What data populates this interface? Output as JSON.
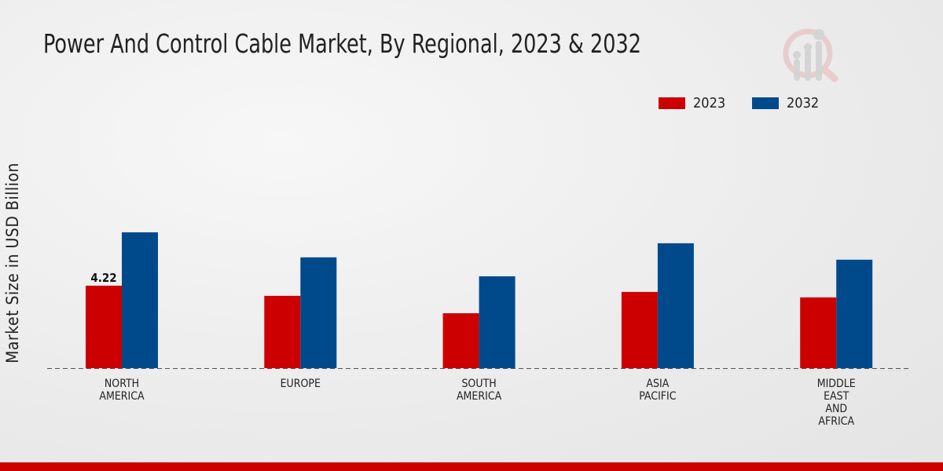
{
  "chart_data": {
    "type": "bar",
    "title": "Power And Control Cable Market, By Regional, 2023 & 2032",
    "xlabel": "",
    "ylabel": "Market Size in USD Billion",
    "categories": [
      [
        "NORTH",
        "AMERICA"
      ],
      [
        "EUROPE"
      ],
      [
        "SOUTH",
        "AMERICA"
      ],
      [
        "ASIA",
        "PACIFIC"
      ],
      [
        "MIDDLE",
        "EAST",
        "AND",
        "AFRICA"
      ]
    ],
    "series": [
      {
        "name": "2023",
        "color": "#cc0000",
        "values": [
          4.22,
          3.7,
          2.81,
          3.9,
          3.62
        ]
      },
      {
        "name": "2032",
        "color": "#004a8c",
        "values": [
          6.95,
          5.67,
          4.7,
          6.39,
          5.55
        ]
      }
    ],
    "data_labels": [
      {
        "series": 0,
        "index": 0,
        "text": "4.22"
      }
    ],
    "ylim": [
      0,
      11
    ],
    "grid": false,
    "legend": "top-right"
  }
}
